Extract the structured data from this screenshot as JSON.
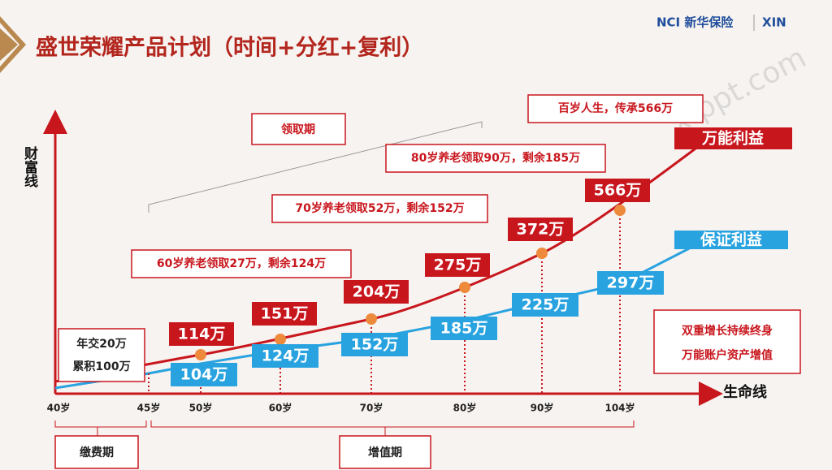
{
  "header": {
    "title": "盛世荣耀产品计划（时间+分红+复利）",
    "brand": "NCI 新华保险",
    "brand2": "XIN",
    "watermark": "xfppt.com"
  },
  "axes": {
    "y_label": "财富线",
    "x_label": "生命线"
  },
  "ages": [
    "40岁",
    "45岁",
    "50岁",
    "60岁",
    "70岁",
    "80岁",
    "90岁",
    "104岁"
  ],
  "periods": {
    "payment": "缴费期",
    "growth": "增值期",
    "withdrawal": "领取期"
  },
  "upper_labels": [
    "114万",
    "151万",
    "204万",
    "275万",
    "372万",
    "566万"
  ],
  "lower_labels": [
    "104万",
    "124万",
    "152万",
    "185万",
    "225万",
    "297万"
  ],
  "payment_note": [
    "年交20万",
    "累积100万"
  ],
  "notes": [
    "60岁养老领取27万，剩余124万",
    "70岁养老领取52万，剩余152万",
    "80岁养老领取90万，剩余185万",
    "百岁人生，传承566万"
  ],
  "legend": [
    "万能利益",
    "保证利益"
  ],
  "callout": [
    "双重增长持续终身",
    "万能账户资产增值"
  ]
}
